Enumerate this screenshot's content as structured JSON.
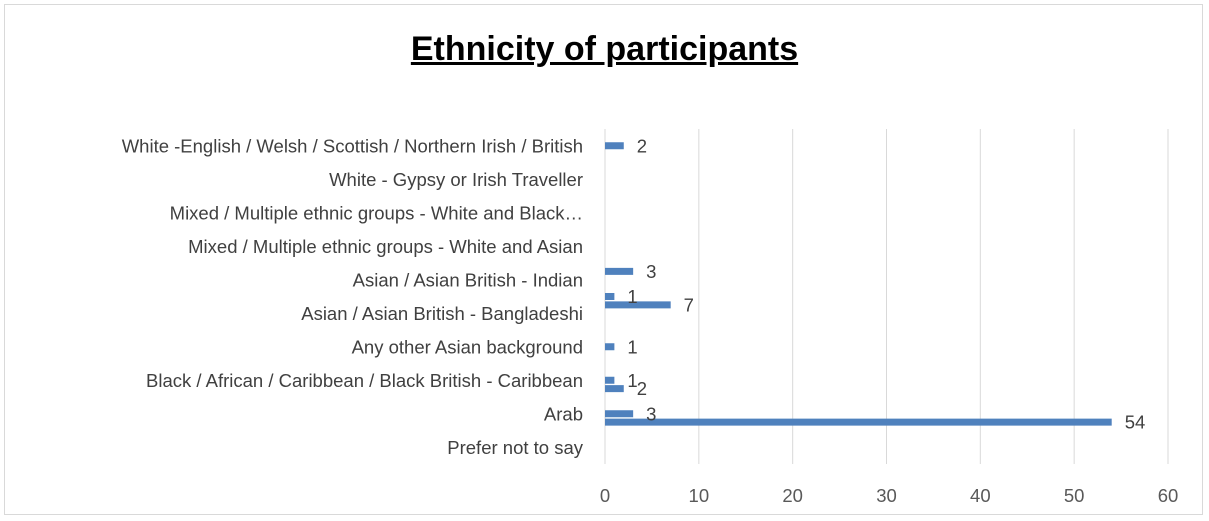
{
  "chart_data": {
    "type": "bar",
    "orientation": "horizontal",
    "title": "Ethnicity of participants",
    "categories": [
      "Prefer not to say",
      "Arab",
      "Black / African / Caribbean / Black British - Caribbean",
      "Any other Asian background",
      "Asian / Asian British - Bangladeshi",
      "Asian / Asian British - Indian",
      "Mixed / Multiple ethnic groups - White and Asian",
      "Mixed / Multiple ethnic groups - White and Black…",
      "White -   Gypsy or Irish Traveller",
      "White -English / Welsh / Scottish / Northern Irish / British"
    ],
    "bars": [
      {
        "value": 2,
        "y": 9.5
      },
      {
        "value": 3,
        "y": 5.75
      },
      {
        "value": 1,
        "y": 5.0
      },
      {
        "value": 7,
        "y": 4.75
      },
      {
        "value": 1,
        "y": 3.5
      },
      {
        "value": 1,
        "y": 2.5
      },
      {
        "value": 2,
        "y": 2.25
      },
      {
        "value": 3,
        "y": 1.5
      },
      {
        "value": 54,
        "y": 1.25
      }
    ],
    "xlim": [
      0,
      60
    ],
    "xticks": [
      0,
      10,
      20,
      30,
      40,
      50,
      60
    ],
    "grid": true,
    "colors": {
      "bar": "#4f81bd",
      "grid": "#d9d9d9",
      "text": "#404040"
    }
  }
}
